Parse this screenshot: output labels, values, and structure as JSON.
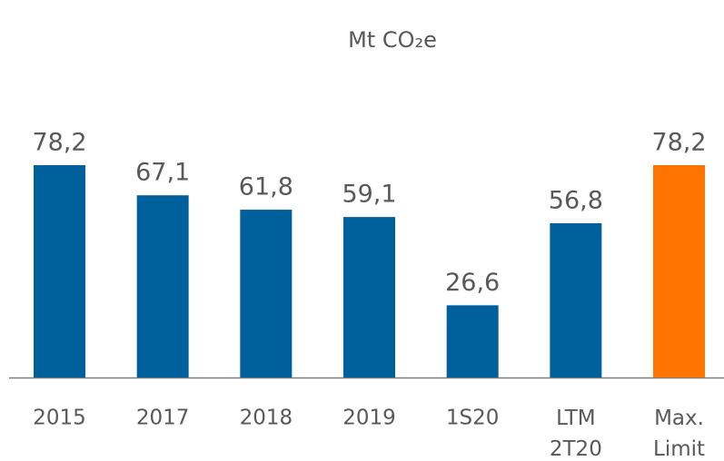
{
  "chart_data": {
    "type": "bar",
    "title": "Mt CO₂e",
    "categories": [
      "2015",
      "2017",
      "2018",
      "2019",
      "1S20",
      "LTM 2T20",
      "Max. Limit"
    ],
    "values": [
      78.2,
      67.1,
      61.8,
      59.1,
      26.6,
      56.8,
      78.2
    ],
    "value_labels": [
      "78,2",
      "67,1",
      "61,8",
      "59,1",
      "26,6",
      "56,8",
      "78,2"
    ],
    "colors": [
      "#00609c",
      "#00609c",
      "#00609c",
      "#00609c",
      "#00609c",
      "#00609c",
      "#ff7300"
    ],
    "ylim": [
      0,
      80
    ]
  }
}
